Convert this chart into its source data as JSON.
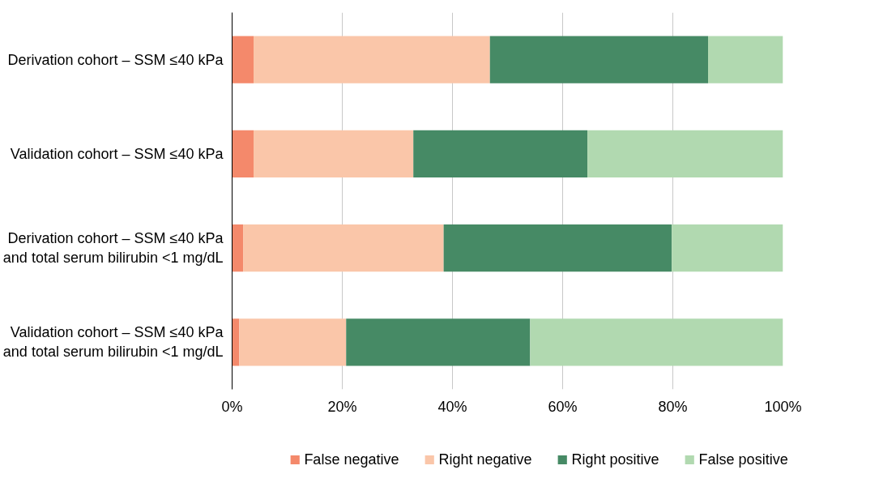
{
  "chart_data": {
    "type": "bar",
    "orientation": "horizontal",
    "stacked": true,
    "categories": [
      "Derivation cohort – SSM ≤40 kPa",
      "Validation cohort – SSM ≤40 kPa",
      "Derivation cohort – SSM ≤40 kPa\nand total serum bilirubin <1 mg/dL",
      "Validation cohort – SSM ≤40 kPa\nand total serum bilirubin <1 mg/dL"
    ],
    "series": [
      {
        "name": "False negative",
        "color": "#f4896b",
        "values": [
          3.9,
          3.9,
          2.0,
          1.3
        ]
      },
      {
        "name": "Right negative",
        "color": "#fac6a9",
        "values": [
          42.9,
          29.0,
          36.4,
          19.4
        ]
      },
      {
        "name": "Right positive",
        "color": "#468a65",
        "values": [
          39.6,
          31.6,
          41.4,
          33.4
        ]
      },
      {
        "name": "False positive",
        "color": "#b1d9b0",
        "values": [
          13.6,
          35.5,
          20.2,
          45.9
        ]
      }
    ],
    "xlim": [
      0,
      100
    ],
    "xticks": [
      {
        "value": 0,
        "label": "0%"
      },
      {
        "value": 20,
        "label": "20%"
      },
      {
        "value": 40,
        "label": "40%"
      },
      {
        "value": 60,
        "label": "60%"
      },
      {
        "value": 80,
        "label": "80%"
      },
      {
        "value": 100,
        "label": "100%"
      }
    ],
    "grid": "x",
    "legend": "bottom"
  }
}
